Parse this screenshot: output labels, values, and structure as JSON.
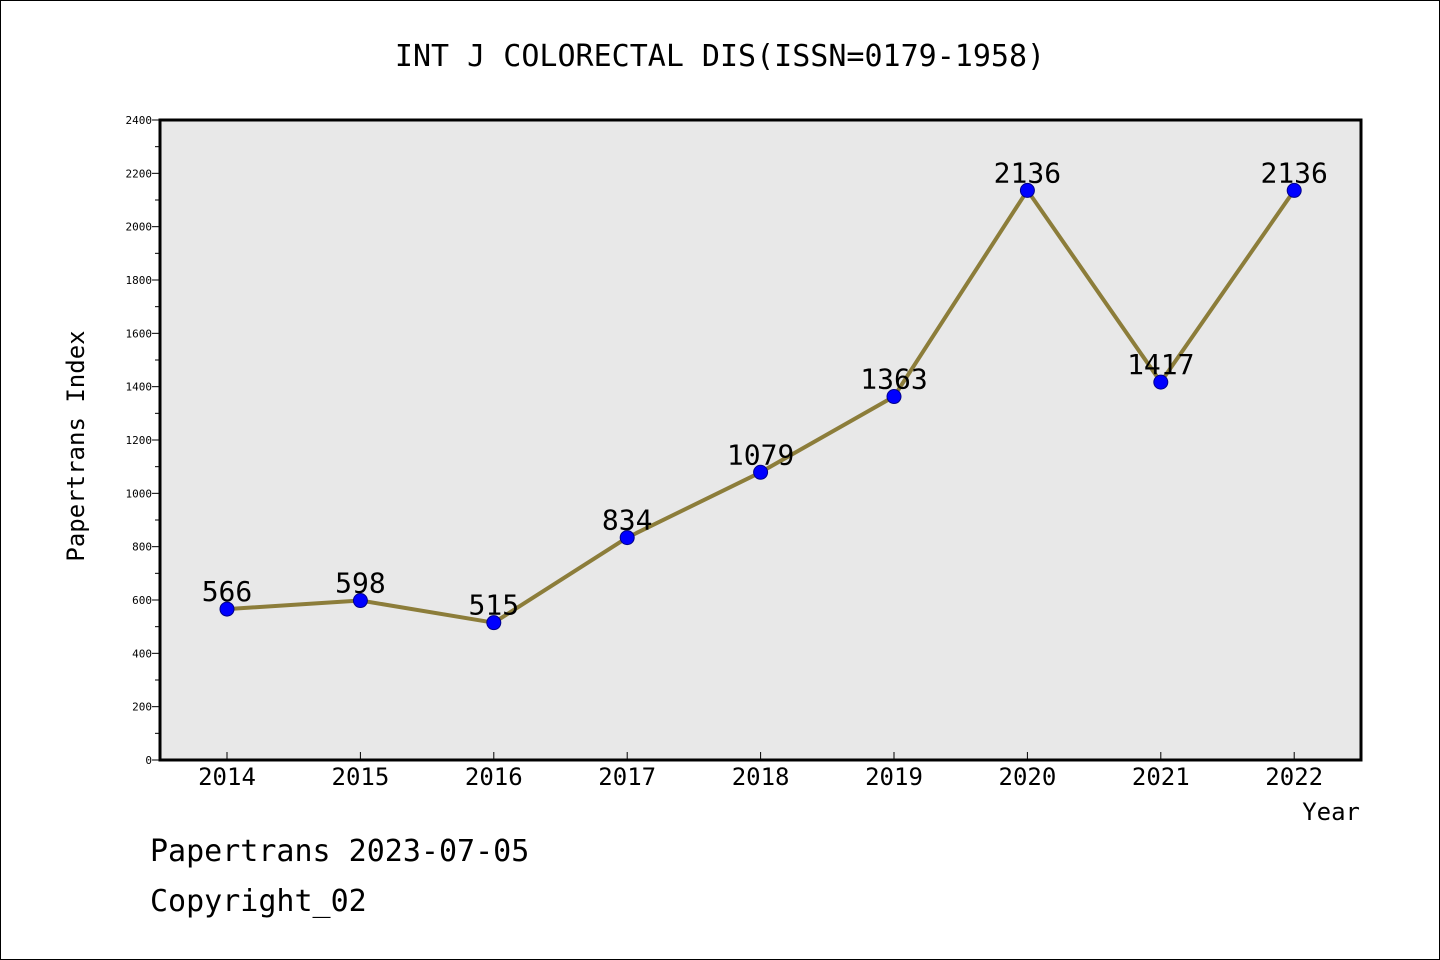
{
  "chart_data": {
    "type": "line",
    "title": "INT J COLORECTAL DIS(ISSN=0179-1958)",
    "xlabel": "Year",
    "ylabel": "Papertrans Index",
    "categories": [
      "2014",
      "2015",
      "2016",
      "2017",
      "2018",
      "2019",
      "2020",
      "2021",
      "2022"
    ],
    "series": [
      {
        "values": [
          566,
          598,
          515,
          834,
          1079,
          1363,
          2136,
          1417,
          2136
        ]
      }
    ],
    "ylim": [
      0,
      2400
    ],
    "yticks": [
      "0",
      "200",
      "400",
      "600",
      "800",
      "1000",
      "1200",
      "1400",
      "1600",
      "1800",
      "2000",
      "2200",
      "2400"
    ],
    "grid": false,
    "colors": {
      "line": "#8c7d3a",
      "marker": "#0000ff",
      "plot_bg": "#e8e8e8"
    }
  },
  "footer": {
    "line1": "Papertrans 2023-07-05",
    "line2": "Copyright_02"
  }
}
